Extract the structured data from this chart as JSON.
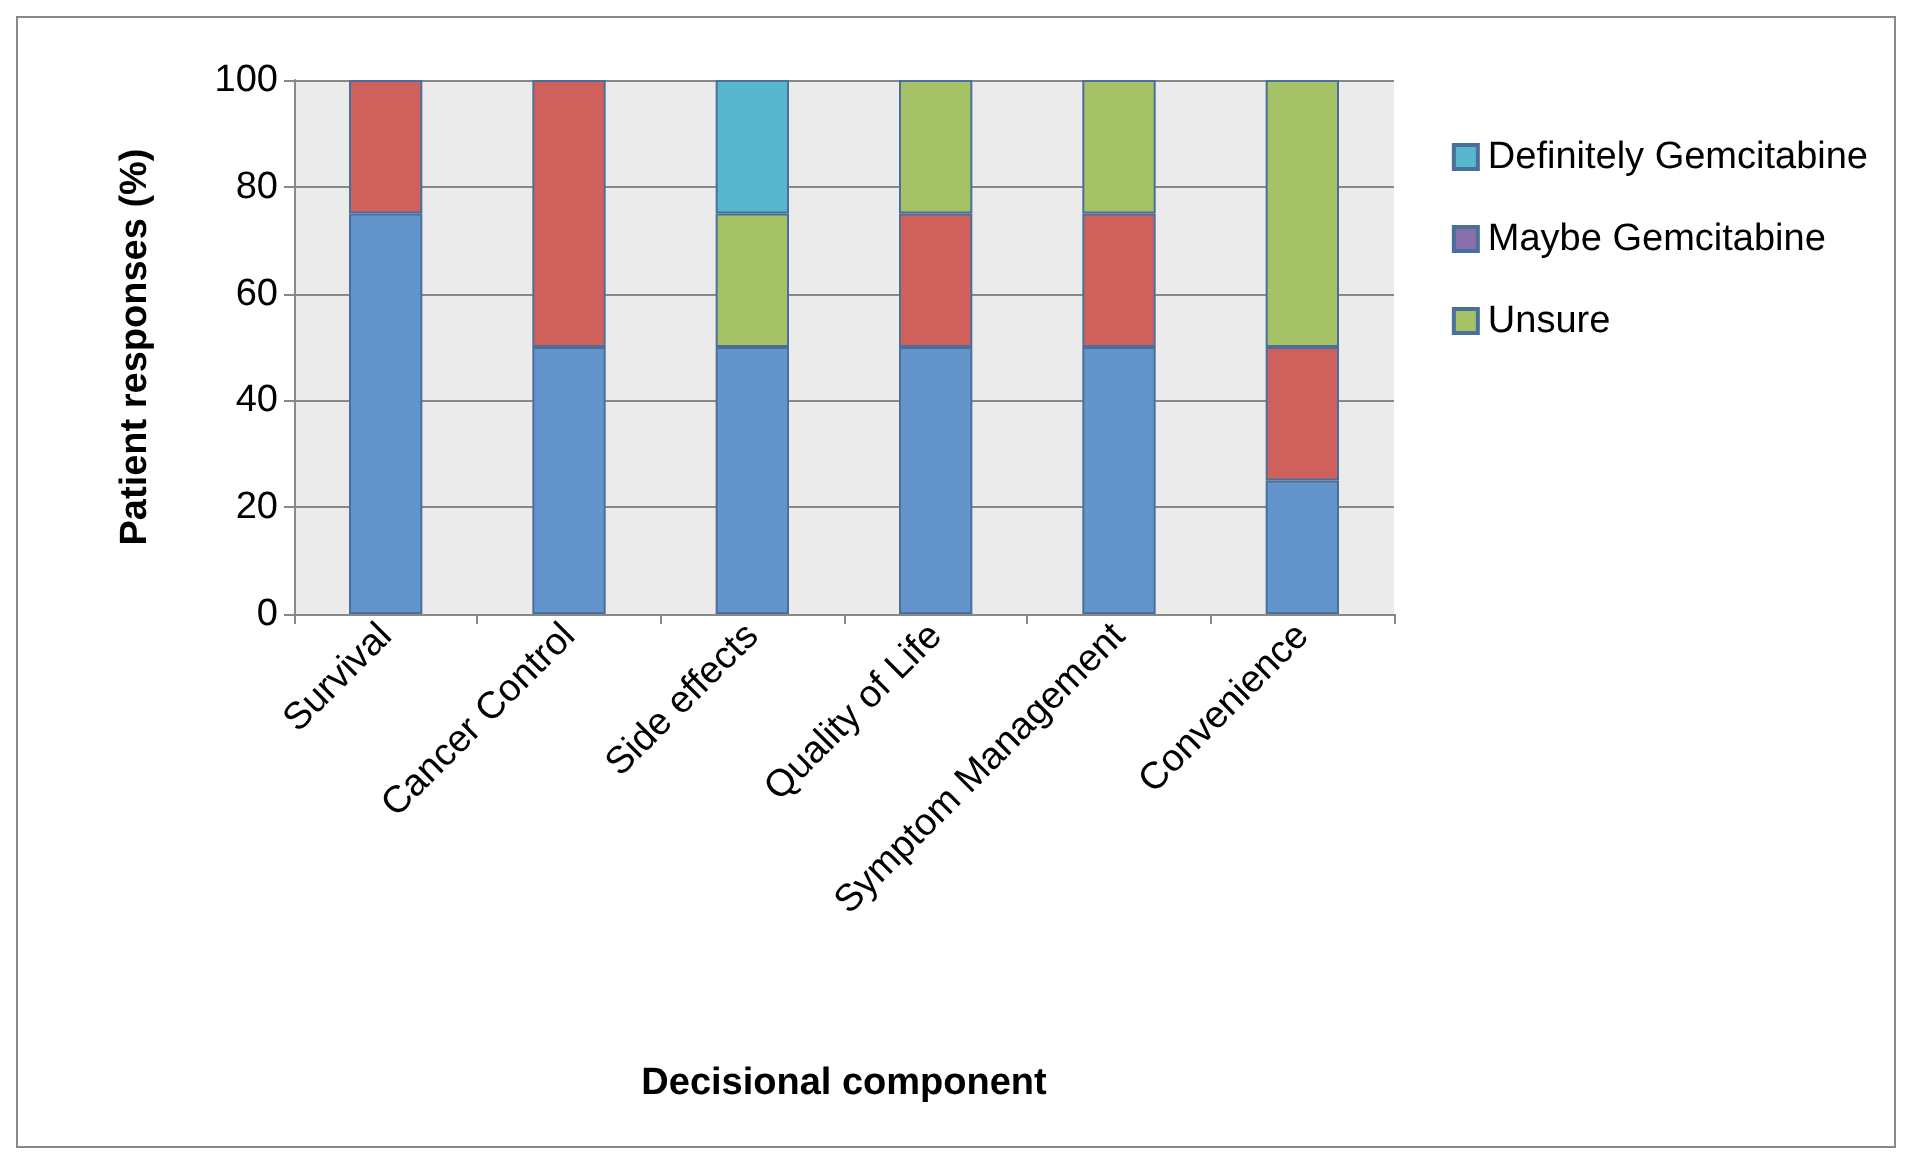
{
  "chart_data": {
    "type": "bar",
    "stacked": true,
    "xlabel": "Decisional component",
    "ylabel": "Patient responses (%)",
    "categories": [
      "Survival",
      "Cancer Control",
      "Side effects",
      "Quality of Life",
      "Symptom Management",
      "Convenience"
    ],
    "series": [
      {
        "color": "#6394cb",
        "values": [
          75,
          50,
          50,
          50,
          50,
          25
        ]
      },
      {
        "color": "#d0605b",
        "values": [
          25,
          50,
          0,
          25,
          25,
          25
        ]
      },
      {
        "name": "Unsure",
        "color": "#a5c266",
        "values": [
          0,
          0,
          25,
          25,
          25,
          50
        ]
      },
      {
        "name": "Maybe Gemcitabine",
        "color": "#8a70aa",
        "values": [
          0,
          0,
          0,
          0,
          0,
          0
        ]
      },
      {
        "name": "Definitely Gemcitabine",
        "color": "#56b7cd",
        "values": [
          0,
          0,
          25,
          0,
          0,
          0
        ]
      }
    ],
    "ylim": [
      0,
      100
    ],
    "yticks": [
      0,
      20,
      40,
      60,
      80,
      100
    ],
    "grid": "y",
    "legend": "right"
  }
}
